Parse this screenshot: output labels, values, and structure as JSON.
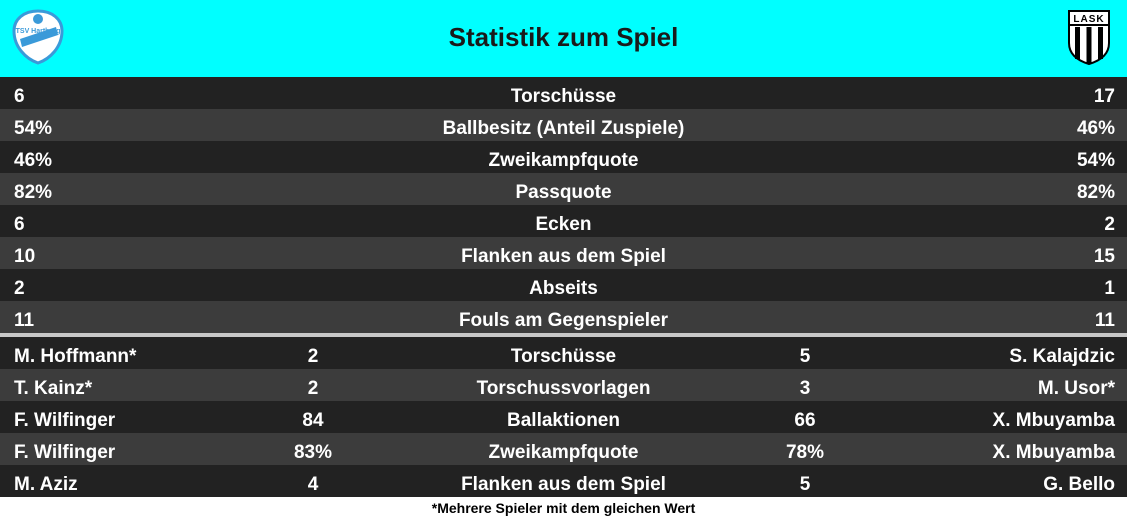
{
  "header": {
    "title": "Statistik zum Spiel",
    "home_logo_text": "TSV Hartberg",
    "away_logo_text": "LASK",
    "background": "#00ffff"
  },
  "team_stats": [
    {
      "home": "6",
      "label": "Torschüsse",
      "away": "17"
    },
    {
      "home": "54%",
      "label": "Ballbesitz (Anteil Zuspiele)",
      "away": "46%"
    },
    {
      "home": "46%",
      "label": "Zweikampfquote",
      "away": "54%"
    },
    {
      "home": "82%",
      "label": "Passquote",
      "away": "82%"
    },
    {
      "home": "6",
      "label": "Ecken",
      "away": "2"
    },
    {
      "home": "10",
      "label": "Flanken aus dem Spiel",
      "away": "15"
    },
    {
      "home": "2",
      "label": "Abseits",
      "away": "1"
    },
    {
      "home": "11",
      "label": "Fouls am Gegenspieler",
      "away": "11"
    }
  ],
  "player_stats": [
    {
      "home_player": "M. Hoffmann*",
      "home_value": "2",
      "label": "Torschüsse",
      "away_value": "5",
      "away_player": "S. Kalajdzic"
    },
    {
      "home_player": "T. Kainz*",
      "home_value": "2",
      "label": "Torschussvorlagen",
      "away_value": "3",
      "away_player": "M. Usor*"
    },
    {
      "home_player": "F. Wilfinger",
      "home_value": "84",
      "label": "Ballaktionen",
      "away_value": "66",
      "away_player": "X. Mbuyamba"
    },
    {
      "home_player": "F. Wilfinger",
      "home_value": "83%",
      "label": "Zweikampfquote",
      "away_value": "78%",
      "away_player": "X. Mbuyamba"
    },
    {
      "home_player": "M. Aziz",
      "home_value": "4",
      "label": "Flanken aus dem Spiel",
      "away_value": "5",
      "away_player": "G. Bello"
    }
  ],
  "footnote": "*Mehrere Spieler mit dem gleichen Wert"
}
